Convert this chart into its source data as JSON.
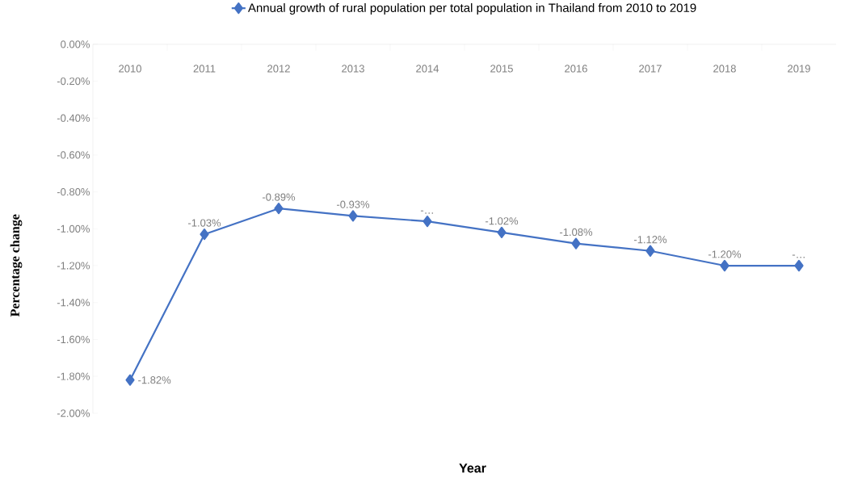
{
  "chart_data": {
    "type": "line",
    "legend": "top",
    "marker": "diamond",
    "line_style": "solid",
    "xlabel": "Year",
    "ylabel": "Percentage change",
    "categories": [
      "2010",
      "2011",
      "2012",
      "2013",
      "2014",
      "2015",
      "2016",
      "2017",
      "2018",
      "2019"
    ],
    "series": [
      {
        "name": "Annual growth of rural population per total population in Thailand from 2010 to 2019",
        "color": "#4472c4",
        "values": [
          -1.82,
          -1.03,
          -0.89,
          -0.93,
          -0.96,
          -1.02,
          -1.08,
          -1.12,
          -1.2,
          -1.2
        ],
        "value_labels": [
          "-1.82%",
          "-1.03%",
          "-0.89%",
          "-0.93%",
          "-…",
          "-1.02%",
          "-1.08%",
          "-1.12%",
          "-1.20%",
          "-…"
        ]
      }
    ],
    "ylim": [
      -2,
      0
    ],
    "yticks": [
      {
        "value": 0,
        "label": "0.00%"
      },
      {
        "value": -0.2,
        "label": "-0.20%"
      },
      {
        "value": -0.4,
        "label": "-0.40%"
      },
      {
        "value": -0.6,
        "label": "-0.60%"
      },
      {
        "value": -0.8,
        "label": "-0.80%"
      },
      {
        "value": -1.0,
        "label": "-1.00%"
      },
      {
        "value": -1.2,
        "label": "-1.20%"
      },
      {
        "value": -1.4,
        "label": "-1.40%"
      },
      {
        "value": -1.6,
        "label": "-1.60%"
      },
      {
        "value": -1.8,
        "label": "-1.80%"
      },
      {
        "value": -2.0,
        "label": "-2.00%"
      }
    ]
  }
}
